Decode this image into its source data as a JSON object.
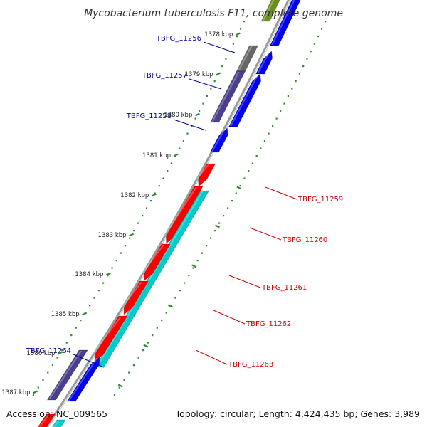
{
  "title": "Mycobacterium tuberculosis F11, complete genome",
  "accession_text": "Accession: NC_009565",
  "topology_text": "Topology: circular; Length: 4,424,435 bp; Genes: 3,989",
  "colors": {
    "backbone": "#8a8a8a",
    "tick": "#2e8b2e",
    "forward_gene": "#0000ee",
    "reverse_gene": "#ff0000",
    "highlight_forward": "#4a3f8c",
    "highlight_reverse": "#00cccc",
    "highlight_other": "#666666",
    "highlight_top": "#6b8e23",
    "label_forward": "#000099",
    "label_reverse": "#cc0000"
  },
  "kbp_ticks": [
    "1378 kbp",
    "1379 kbp",
    "1380 kbp",
    "1381 kbp",
    "1382 kbp",
    "1383 kbp",
    "1384 kbp",
    "1385 kbp",
    "1386 kbp",
    "1387 kbp"
  ],
  "gene_labels_left": [
    "TBFG_11256",
    "TBFG_11257",
    "TBFG_11258",
    "TBFG_11264"
  ],
  "gene_labels_right": [
    "TBFG_11259",
    "TBFG_11260",
    "TBFG_11261",
    "TBFG_11262",
    "TBFG_11263"
  ]
}
